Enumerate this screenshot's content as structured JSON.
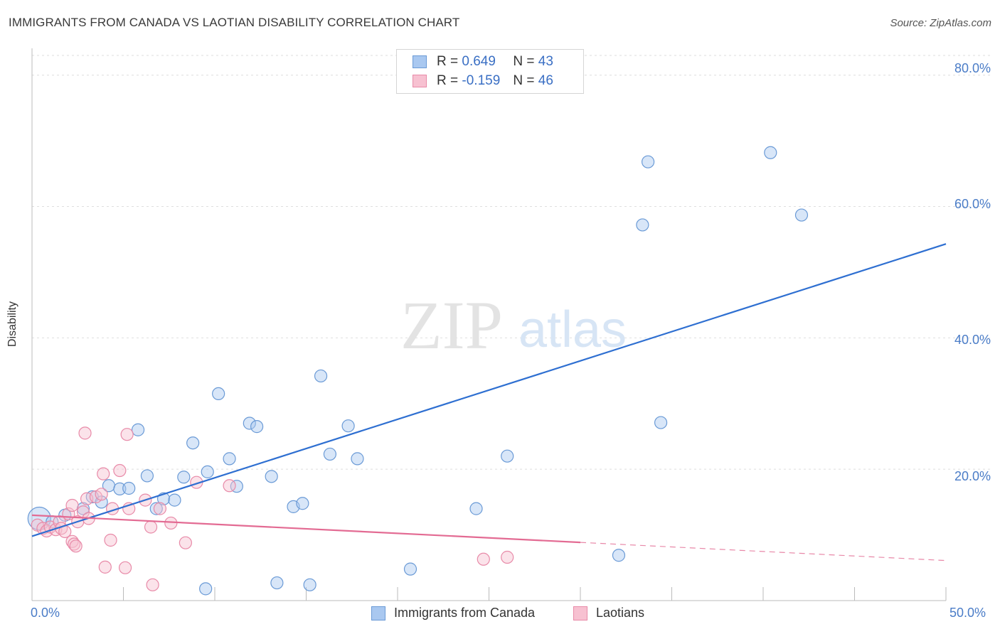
{
  "title": "IMMIGRANTS FROM CANADA VS LAOTIAN DISABILITY CORRELATION CHART",
  "source": "Source: ZipAtlas.com",
  "watermark": {
    "zip": "ZIP",
    "atlas": "atlas"
  },
  "legend": {
    "rows": [
      {
        "r_label": "R =",
        "r_value": "0.649",
        "n_label": "N =",
        "n_value": "43",
        "color": "#a9c8f0",
        "border": "#6a9ad6"
      },
      {
        "r_label": "R =",
        "r_value": "-0.159",
        "n_label": "N =",
        "n_value": "46",
        "color": "#f7c1d1",
        "border": "#e88aa8"
      }
    ]
  },
  "bottom_legend": [
    {
      "label": "Immigrants from Canada",
      "color": "#a9c8f0",
      "border": "#6a9ad6"
    },
    {
      "label": "Laotians",
      "color": "#f7c1d1",
      "border": "#e88aa8"
    }
  ],
  "chart_data": {
    "type": "scatter",
    "title": "IMMIGRANTS FROM CANADA VS LAOTIAN DISABILITY CORRELATION CHART",
    "xlabel": "",
    "ylabel": "Disability",
    "xlim": [
      0,
      50
    ],
    "ylim": [
      0,
      83
    ],
    "x_tick_labels": [
      "0.0%",
      "50.0%"
    ],
    "y_ticks": [
      20,
      40,
      60,
      80
    ],
    "y_tick_labels": [
      "20.0%",
      "40.0%",
      "60.0%",
      "80.0%"
    ],
    "grid": true,
    "series": [
      {
        "name": "Immigrants from Canada",
        "color": "#6a9ad6",
        "fill": "#a9c8f0",
        "trend": {
          "x": [
            0,
            50
          ],
          "y": [
            9.8,
            54.3
          ],
          "dashed_from": null,
          "color": "#2e6fd1"
        },
        "points": [
          {
            "x": 0.4,
            "y": 12.5,
            "big": true
          },
          {
            "x": 1.1,
            "y": 12.0
          },
          {
            "x": 1.8,
            "y": 13.0
          },
          {
            "x": 2.8,
            "y": 14.0
          },
          {
            "x": 3.3,
            "y": 15.8
          },
          {
            "x": 3.8,
            "y": 15.0
          },
          {
            "x": 4.2,
            "y": 17.5
          },
          {
            "x": 4.8,
            "y": 17.0
          },
          {
            "x": 5.3,
            "y": 17.1
          },
          {
            "x": 5.8,
            "y": 26.0
          },
          {
            "x": 6.3,
            "y": 19.0
          },
          {
            "x": 6.8,
            "y": 14.0
          },
          {
            "x": 7.2,
            "y": 15.5
          },
          {
            "x": 7.8,
            "y": 15.3
          },
          {
            "x": 8.3,
            "y": 18.8
          },
          {
            "x": 8.8,
            "y": 24.0
          },
          {
            "x": 9.5,
            "y": 1.8
          },
          {
            "x": 9.6,
            "y": 19.6
          },
          {
            "x": 10.2,
            "y": 31.5
          },
          {
            "x": 10.8,
            "y": 21.6
          },
          {
            "x": 11.2,
            "y": 17.4
          },
          {
            "x": 11.9,
            "y": 27.0
          },
          {
            "x": 12.3,
            "y": 26.5
          },
          {
            "x": 13.1,
            "y": 18.9
          },
          {
            "x": 13.4,
            "y": 2.7
          },
          {
            "x": 14.3,
            "y": 14.3
          },
          {
            "x": 14.8,
            "y": 14.8
          },
          {
            "x": 15.2,
            "y": 2.4
          },
          {
            "x": 15.8,
            "y": 34.2
          },
          {
            "x": 16.3,
            "y": 22.3
          },
          {
            "x": 17.3,
            "y": 26.6
          },
          {
            "x": 17.8,
            "y": 21.6
          },
          {
            "x": 20.7,
            "y": 4.8
          },
          {
            "x": 24.3,
            "y": 14.0
          },
          {
            "x": 26.0,
            "y": 22.0
          },
          {
            "x": 32.1,
            "y": 6.9
          },
          {
            "x": 33.4,
            "y": 57.2
          },
          {
            "x": 33.7,
            "y": 66.8
          },
          {
            "x": 34.4,
            "y": 27.1
          },
          {
            "x": 40.4,
            "y": 68.2
          },
          {
            "x": 42.1,
            "y": 58.7
          }
        ]
      },
      {
        "name": "Laotians",
        "color": "#e88aa8",
        "fill": "#f7c1d1",
        "trend": {
          "x": [
            0,
            50
          ],
          "y": [
            13.0,
            6.1
          ],
          "dashed_from": 30,
          "color": "#e36b93"
        },
        "points": [
          {
            "x": 0.3,
            "y": 11.5
          },
          {
            "x": 0.6,
            "y": 11.0
          },
          {
            "x": 0.8,
            "y": 10.6
          },
          {
            "x": 1.0,
            "y": 11.2
          },
          {
            "x": 1.3,
            "y": 10.8
          },
          {
            "x": 1.5,
            "y": 12.0
          },
          {
            "x": 1.6,
            "y": 11.0
          },
          {
            "x": 1.8,
            "y": 10.5
          },
          {
            "x": 2.0,
            "y": 13.2
          },
          {
            "x": 2.2,
            "y": 14.5
          },
          {
            "x": 2.2,
            "y": 9.0
          },
          {
            "x": 2.3,
            "y": 8.6
          },
          {
            "x": 2.4,
            "y": 8.3
          },
          {
            "x": 2.5,
            "y": 12.0
          },
          {
            "x": 2.8,
            "y": 13.5
          },
          {
            "x": 3.0,
            "y": 15.5
          },
          {
            "x": 2.9,
            "y": 25.5
          },
          {
            "x": 3.1,
            "y": 12.5
          },
          {
            "x": 3.5,
            "y": 15.8
          },
          {
            "x": 3.8,
            "y": 16.2
          },
          {
            "x": 3.9,
            "y": 19.3
          },
          {
            "x": 4.0,
            "y": 5.1
          },
          {
            "x": 4.3,
            "y": 9.2
          },
          {
            "x": 4.4,
            "y": 14.0
          },
          {
            "x": 4.8,
            "y": 19.8
          },
          {
            "x": 5.1,
            "y": 5.0
          },
          {
            "x": 5.2,
            "y": 25.3
          },
          {
            "x": 5.3,
            "y": 14.0
          },
          {
            "x": 6.2,
            "y": 15.3
          },
          {
            "x": 6.5,
            "y": 11.2
          },
          {
            "x": 6.6,
            "y": 2.4
          },
          {
            "x": 7.0,
            "y": 14.0
          },
          {
            "x": 7.6,
            "y": 11.8
          },
          {
            "x": 8.4,
            "y": 8.8
          },
          {
            "x": 9.0,
            "y": 18.0
          },
          {
            "x": 10.8,
            "y": 17.5
          },
          {
            "x": 24.7,
            "y": 6.3
          },
          {
            "x": 26.0,
            "y": 6.6
          }
        ]
      }
    ]
  }
}
